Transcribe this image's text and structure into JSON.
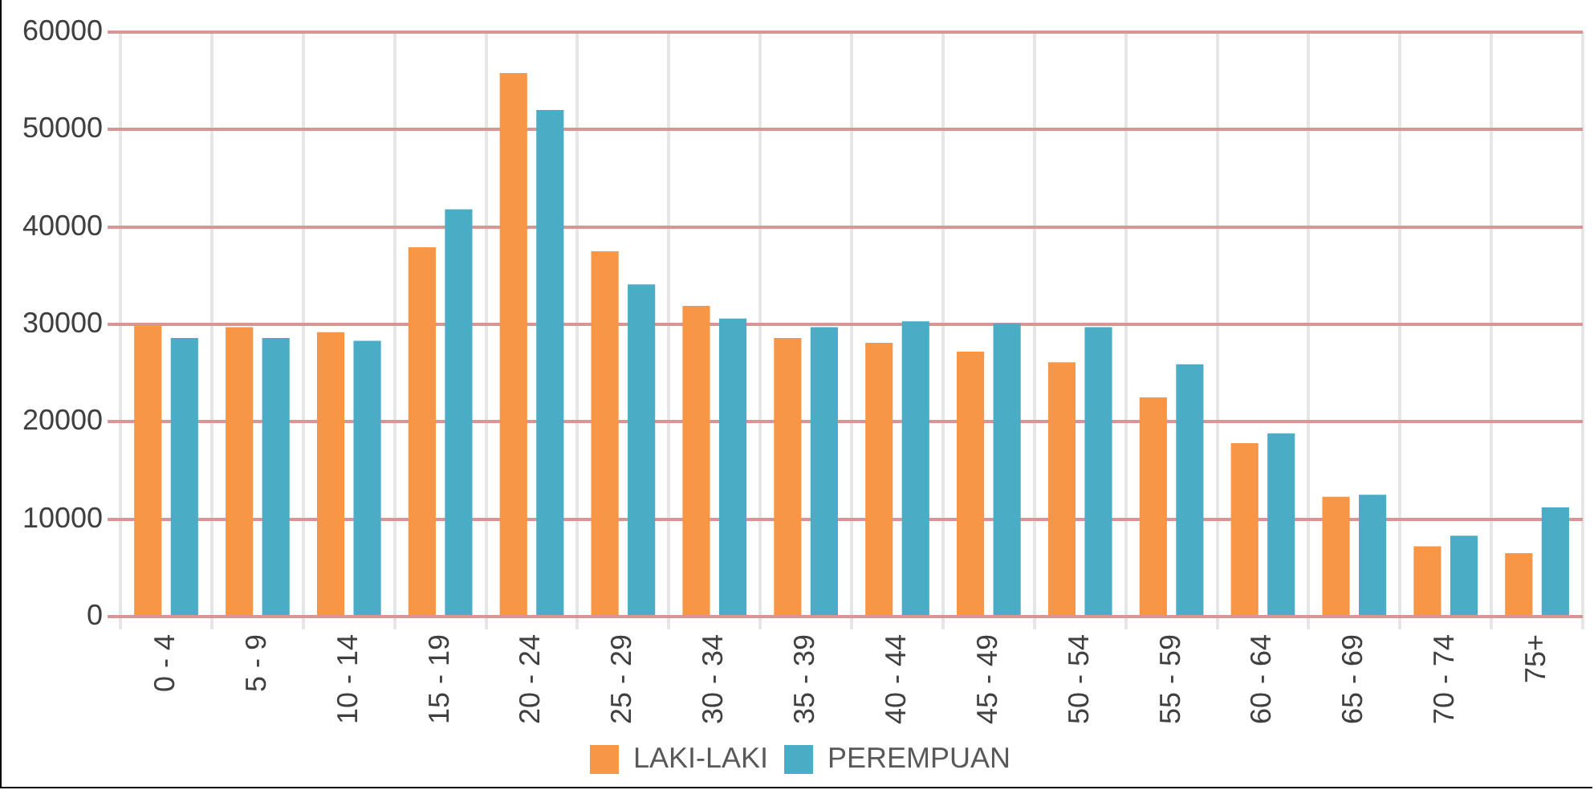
{
  "chart_data": {
    "type": "bar",
    "categories": [
      "0 - 4",
      "5 - 9",
      "10 - 14",
      "15 - 19",
      "20 - 24",
      "25 - 29",
      "30 - 34",
      "35 - 39",
      "40 - 44",
      "45 - 49",
      "50 - 54",
      "55 - 59",
      "60 - 64",
      "65 - 69",
      "70 - 74",
      "75+"
    ],
    "series": [
      {
        "name": "LAKI-LAKI",
        "color": "#f79646",
        "values": [
          29900,
          29700,
          29200,
          37900,
          55800,
          37500,
          31900,
          28600,
          28100,
          27200,
          26100,
          22500,
          17800,
          12300,
          7200,
          6500
        ]
      },
      {
        "name": "PEREMPUAN",
        "color": "#4bacc6",
        "values": [
          28600,
          28600,
          28300,
          41800,
          52000,
          34100,
          30600,
          29700,
          30300,
          30100,
          29700,
          25900,
          18800,
          12500,
          8300,
          11200
        ]
      }
    ],
    "ylim": [
      0,
      60000
    ],
    "yticks": [
      0,
      10000,
      20000,
      30000,
      40000,
      50000,
      60000
    ],
    "grid": true,
    "legend": "bottom"
  }
}
